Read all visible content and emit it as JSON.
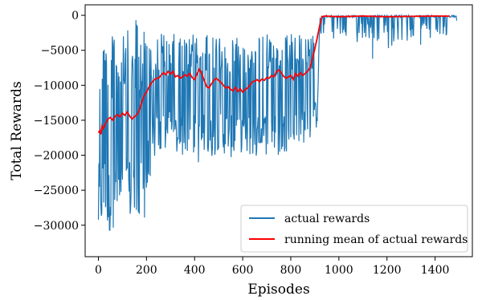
{
  "chart_data": {
    "type": "line",
    "xlabel": "Episodes",
    "ylabel": "Total Rewards",
    "xlim": [
      -55,
      1555
    ],
    "ylim": [
      -34500,
      1500
    ],
    "xticks": [
      0,
      200,
      400,
      600,
      800,
      1000,
      1200,
      1400
    ],
    "yticks": [
      0,
      -5000,
      -10000,
      -15000,
      -20000,
      -25000,
      -30000
    ],
    "ytick_labels": [
      "0",
      "−5000",
      "−10000",
      "−15000",
      "−20000",
      "−25000",
      "−30000"
    ],
    "grid": false,
    "legend_position": "lower-right",
    "series": [
      {
        "name": "actual rewards",
        "color": "#1f77b4",
        "x": [
          0,
          10,
          20,
          30,
          40,
          50,
          60,
          70,
          80,
          100,
          120,
          140,
          160,
          180,
          200,
          220,
          240,
          260,
          280,
          300,
          320,
          340,
          360,
          380,
          400,
          420,
          440,
          460,
          480,
          500,
          520,
          540,
          560,
          580,
          600,
          620,
          640,
          660,
          680,
          700,
          720,
          740,
          760,
          780,
          800,
          820,
          840,
          860,
          880,
          900,
          910,
          920,
          925,
          950,
          1000,
          1050,
          1100,
          1150,
          1200,
          1250,
          1300,
          1350,
          1400,
          1450,
          1490
        ],
        "envelope_max": [
          0,
          -2000,
          0,
          -3000,
          0,
          -2000,
          -3000,
          0,
          -4000,
          0,
          -2000,
          -3000,
          0,
          -2000,
          0,
          -2500,
          -3000,
          -2000,
          -3000,
          -3000,
          -2500,
          -3000,
          -3000,
          -2500,
          -2500,
          -3000,
          -2500,
          -3000,
          -3000,
          -2500,
          -2500,
          -3000,
          -2500,
          -2500,
          -3000,
          -2500,
          -3000,
          -2500,
          -3000,
          -2500,
          -2500,
          -3000,
          -3000,
          -2500,
          -2500,
          -3000,
          -2500,
          -2500,
          -3000,
          -2500,
          -2500,
          0,
          0,
          0,
          0,
          0,
          0,
          0,
          0,
          0,
          0,
          0,
          0,
          0,
          0
        ],
        "envelope_min": [
          -32700,
          -30500,
          -31000,
          -29000,
          -32500,
          -31500,
          -30000,
          -32000,
          -28500,
          -31000,
          -30500,
          -29000,
          -32500,
          -31000,
          -28000,
          -22000,
          -20000,
          -20500,
          -19500,
          -19000,
          -20000,
          -21000,
          -19500,
          -20500,
          -20000,
          -21500,
          -20000,
          -21000,
          -20500,
          -19000,
          -20000,
          -19500,
          -21000,
          -20000,
          -19500,
          -20500,
          -20000,
          -21000,
          -19500,
          -20000,
          -19000,
          -20500,
          -20000,
          -19500,
          -19000,
          -19500,
          -19000,
          -18000,
          -19000,
          -17500,
          -15500,
          -2000,
          -3000,
          -4000,
          -3500,
          -4500,
          -3500,
          -4000,
          -5000,
          -4000,
          -3500,
          -3500,
          -3500,
          -3000,
          -2500
        ],
        "spikes": [
          {
            "x": 1140,
            "y": -6200
          },
          {
            "x": 1340,
            "y": -4200
          }
        ]
      },
      {
        "name": "running mean of actual rewards",
        "color": "#ff0000",
        "x": [
          0,
          5,
          10,
          15,
          20,
          30,
          40,
          50,
          60,
          70,
          80,
          90,
          100,
          110,
          120,
          130,
          140,
          150,
          160,
          170,
          180,
          190,
          200,
          210,
          220,
          230,
          240,
          250,
          260,
          270,
          280,
          290,
          300,
          310,
          320,
          330,
          340,
          350,
          360,
          370,
          380,
          390,
          400,
          410,
          420,
          430,
          440,
          450,
          460,
          470,
          480,
          490,
          500,
          510,
          520,
          530,
          540,
          550,
          560,
          570,
          580,
          590,
          600,
          610,
          620,
          630,
          640,
          650,
          660,
          670,
          680,
          690,
          700,
          710,
          720,
          730,
          740,
          750,
          760,
          770,
          780,
          790,
          800,
          810,
          820,
          830,
          840,
          850,
          860,
          870,
          880,
          890,
          900,
          910,
          920,
          930,
          940,
          1000,
          1100,
          1200,
          1300,
          1400,
          1460
        ],
        "y": [
          -16800,
          -16500,
          -17000,
          -15800,
          -16200,
          -15500,
          -14800,
          -14600,
          -15000,
          -14400,
          -14200,
          -14500,
          -14000,
          -14300,
          -13800,
          -14400,
          -14800,
          -14500,
          -14200,
          -13600,
          -12500,
          -11500,
          -11000,
          -10300,
          -9700,
          -9300,
          -9000,
          -9000,
          -8600,
          -8200,
          -8500,
          -8000,
          -8400,
          -8000,
          -8800,
          -8600,
          -9000,
          -8800,
          -8500,
          -8700,
          -8300,
          -8900,
          -9200,
          -8400,
          -7700,
          -8400,
          -9300,
          -10200,
          -10400,
          -9800,
          -9300,
          -9000,
          -9300,
          -9600,
          -10000,
          -10400,
          -10200,
          -10600,
          -10800,
          -10300,
          -10900,
          -10500,
          -11000,
          -10600,
          -10400,
          -10000,
          -9500,
          -9400,
          -9200,
          -9500,
          -9100,
          -9300,
          -8900,
          -9000,
          -8600,
          -8800,
          -8100,
          -7800,
          -8200,
          -8700,
          -9000,
          -8800,
          -8600,
          -9200,
          -8300,
          -8700,
          -8200,
          -8600,
          -8300,
          -8000,
          -7500,
          -6200,
          -4800,
          -3200,
          -1500,
          -200,
          -100,
          -200,
          -100,
          -200,
          -150,
          -100,
          -120
        ]
      }
    ]
  }
}
